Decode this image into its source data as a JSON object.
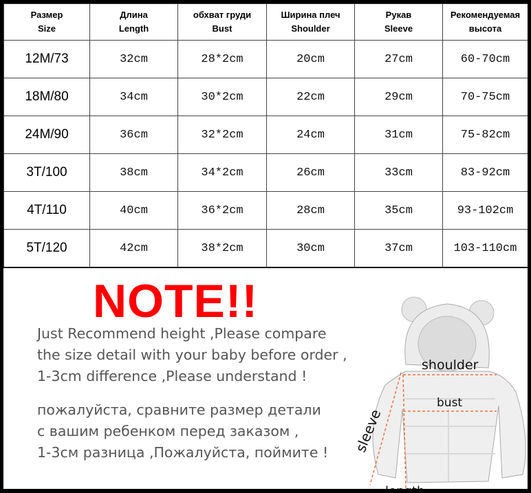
{
  "table": {
    "headers": [
      {
        "ru": "Размер",
        "en": "Size"
      },
      {
        "ru": "Длина",
        "en": "Length"
      },
      {
        "ru": "обхват груди",
        "en": "Bust"
      },
      {
        "ru": "Ширина плеч",
        "en": "Shoulder"
      },
      {
        "ru": "Рукав",
        "en": "Sleeve"
      },
      {
        "ru": "Рекомендуемая",
        "en": "высота"
      }
    ],
    "rows": [
      [
        "12M/73",
        "32cm",
        "28*2cm",
        "20cm",
        "27cm",
        "60-70cm"
      ],
      [
        "18M/80",
        "34cm",
        "30*2cm",
        "22cm",
        "29cm",
        "70-75cm"
      ],
      [
        "24M/90",
        "36cm",
        "32*2cm",
        "24cm",
        "31cm",
        "75-82cm"
      ],
      [
        "3T/100",
        "38cm",
        "34*2cm",
        "26cm",
        "33cm",
        "83-92cm"
      ],
      [
        "4T/110",
        "40cm",
        "36*2cm",
        "28cm",
        "35cm",
        "93-102cm"
      ],
      [
        "5T/120",
        "42cm",
        "38*2cm",
        "30cm",
        "37cm",
        "103-110cm"
      ]
    ]
  },
  "note": {
    "title": "NOTE!!",
    "title_color": "#ff0000",
    "english_lines": [
      "Just Recommend height ,Please compare",
      "the size detail with your baby before order ,",
      "1-3cm difference ,Please understand !"
    ],
    "russian_lines": [
      "пожалуйста, сравните размер детали",
      "с вашим ребенком перед заказом ,",
      "1-3см разница ,Пожалуйста, поймите !"
    ]
  },
  "diagram": {
    "labels": {
      "shoulder": "shoulder",
      "bust": "bust",
      "sleeve": "sleeve",
      "length": "length"
    },
    "measure_color": "#f07040"
  }
}
